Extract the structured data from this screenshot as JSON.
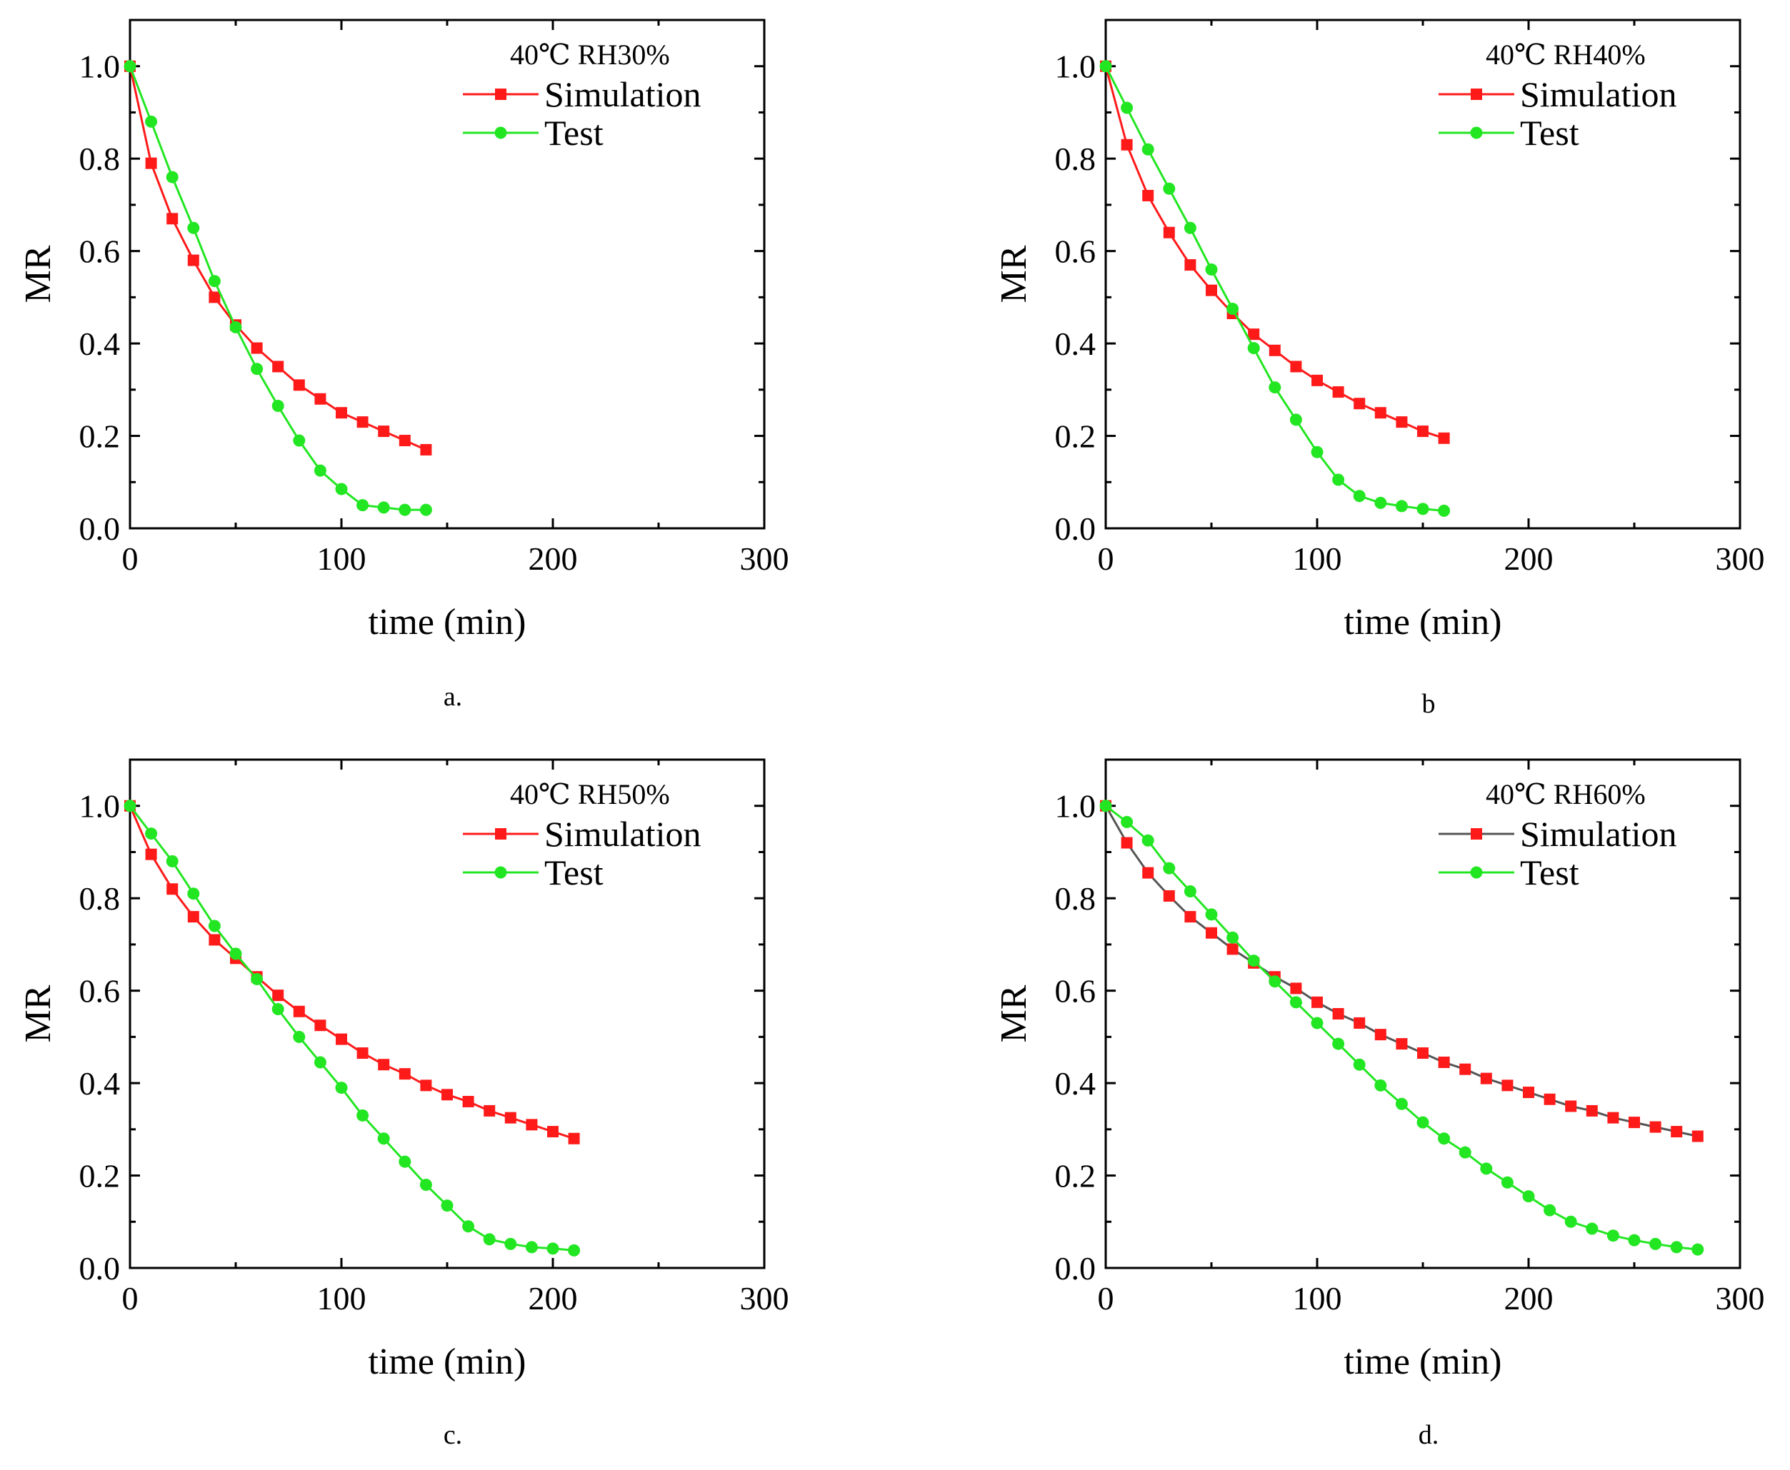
{
  "figure": {
    "panels": [
      "a.",
      "b",
      "c.",
      "d."
    ]
  },
  "colors": {
    "simulation": "#ff1a1a",
    "test": "#22e622",
    "sim_line_d": "#555555",
    "axis": "#000000"
  },
  "chart_data": [
    {
      "type": "line",
      "panel_label": "a.",
      "title": "40℃ RH30%",
      "xlabel": "time (min)",
      "ylabel": "MR",
      "xlim": [
        0,
        300
      ],
      "ylim": [
        0,
        1.1
      ],
      "xticks": [
        "0",
        "100",
        "200",
        "300"
      ],
      "yticks": [
        "0.0",
        "0.2",
        "0.4",
        "0.6",
        "0.8",
        "1.0"
      ],
      "legend_position": "top-right",
      "x": [
        0,
        10,
        20,
        30,
        40,
        50,
        60,
        70,
        80,
        90,
        100,
        110,
        120,
        130,
        140
      ],
      "series": [
        {
          "name": "Simulation",
          "marker": "square",
          "values": [
            1.0,
            0.79,
            0.67,
            0.58,
            0.5,
            0.44,
            0.39,
            0.35,
            0.31,
            0.28,
            0.25,
            0.23,
            0.21,
            0.19,
            0.17
          ]
        },
        {
          "name": "Test",
          "marker": "circle",
          "values": [
            1.0,
            0.88,
            0.76,
            0.65,
            0.535,
            0.435,
            0.345,
            0.265,
            0.19,
            0.125,
            0.085,
            0.05,
            0.045,
            0.04,
            0.04
          ]
        }
      ]
    },
    {
      "type": "line",
      "panel_label": "b",
      "title": "40℃ RH40%",
      "xlabel": "time (min)",
      "ylabel": "MR",
      "xlim": [
        0,
        300
      ],
      "ylim": [
        0,
        1.1
      ],
      "xticks": [
        "0",
        "100",
        "200",
        "300"
      ],
      "yticks": [
        "0.0",
        "0.2",
        "0.4",
        "0.6",
        "0.8",
        "1.0"
      ],
      "legend_position": "top-right",
      "x": [
        0,
        10,
        20,
        30,
        40,
        50,
        60,
        70,
        80,
        90,
        100,
        110,
        120,
        130,
        140,
        150,
        160
      ],
      "series": [
        {
          "name": "Simulation",
          "marker": "square",
          "values": [
            1.0,
            0.83,
            0.72,
            0.64,
            0.57,
            0.515,
            0.465,
            0.42,
            0.385,
            0.35,
            0.32,
            0.295,
            0.27,
            0.25,
            0.23,
            0.21,
            0.195
          ]
        },
        {
          "name": "Test",
          "marker": "circle",
          "values": [
            1.0,
            0.91,
            0.82,
            0.735,
            0.65,
            0.56,
            0.475,
            0.39,
            0.305,
            0.235,
            0.165,
            0.105,
            0.07,
            0.055,
            0.048,
            0.042,
            0.038
          ]
        }
      ]
    },
    {
      "type": "line",
      "panel_label": "c.",
      "title": "40℃ RH50%",
      "xlabel": "time (min)",
      "ylabel": "MR",
      "xlim": [
        0,
        300
      ],
      "ylim": [
        0,
        1.1
      ],
      "xticks": [
        "0",
        "100",
        "200",
        "300"
      ],
      "yticks": [
        "0.0",
        "0.2",
        "0.4",
        "0.6",
        "0.8",
        "1.0"
      ],
      "legend_position": "top-right",
      "x": [
        0,
        10,
        20,
        30,
        40,
        50,
        60,
        70,
        80,
        90,
        100,
        110,
        120,
        130,
        140,
        150,
        160,
        170,
        180,
        190,
        200,
        210
      ],
      "series": [
        {
          "name": "Simulation",
          "marker": "square",
          "values": [
            1.0,
            0.895,
            0.82,
            0.76,
            0.71,
            0.67,
            0.63,
            0.59,
            0.555,
            0.525,
            0.495,
            0.465,
            0.44,
            0.42,
            0.395,
            0.375,
            0.36,
            0.34,
            0.325,
            0.31,
            0.295,
            0.28
          ]
        },
        {
          "name": "Test",
          "marker": "circle",
          "values": [
            1.0,
            0.94,
            0.88,
            0.81,
            0.74,
            0.68,
            0.625,
            0.56,
            0.5,
            0.445,
            0.39,
            0.33,
            0.28,
            0.23,
            0.18,
            0.135,
            0.09,
            0.062,
            0.052,
            0.045,
            0.042,
            0.038
          ]
        }
      ]
    },
    {
      "type": "line",
      "panel_label": "d.",
      "title": "40℃ RH60%",
      "xlabel": "time (min)",
      "ylabel": "MR",
      "xlim": [
        0,
        300
      ],
      "ylim": [
        0,
        1.1
      ],
      "xticks": [
        "0",
        "100",
        "200",
        "300"
      ],
      "yticks": [
        "0.0",
        "0.2",
        "0.4",
        "0.6",
        "0.8",
        "1.0"
      ],
      "legend_position": "top-right",
      "x": [
        0,
        10,
        20,
        30,
        40,
        50,
        60,
        70,
        80,
        90,
        100,
        110,
        120,
        130,
        140,
        150,
        160,
        170,
        180,
        190,
        200,
        210,
        220,
        230,
        240,
        250,
        260,
        270,
        280
      ],
      "series": [
        {
          "name": "Simulation",
          "marker": "square",
          "line": "gray",
          "values": [
            1.0,
            0.92,
            0.855,
            0.805,
            0.76,
            0.725,
            0.69,
            0.66,
            0.63,
            0.605,
            0.575,
            0.55,
            0.53,
            0.505,
            0.485,
            0.465,
            0.445,
            0.43,
            0.41,
            0.395,
            0.38,
            0.365,
            0.35,
            0.34,
            0.325,
            0.315,
            0.305,
            0.295,
            0.285
          ]
        },
        {
          "name": "Test",
          "marker": "circle",
          "values": [
            1.0,
            0.965,
            0.925,
            0.865,
            0.815,
            0.765,
            0.715,
            0.665,
            0.62,
            0.575,
            0.53,
            0.485,
            0.44,
            0.395,
            0.355,
            0.315,
            0.28,
            0.25,
            0.215,
            0.185,
            0.155,
            0.125,
            0.1,
            0.085,
            0.07,
            0.06,
            0.052,
            0.045,
            0.04
          ]
        }
      ]
    }
  ]
}
